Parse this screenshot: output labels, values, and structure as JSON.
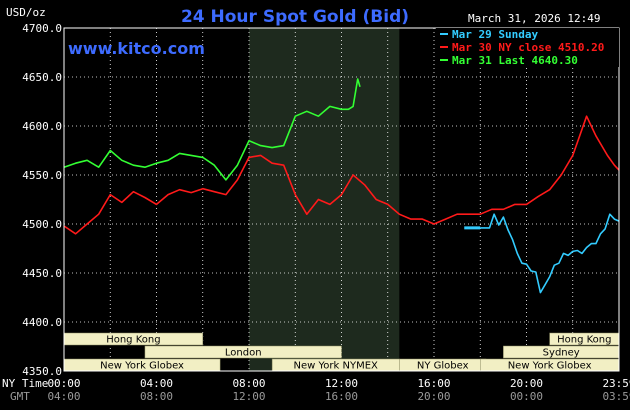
{
  "chart_data": {
    "type": "line",
    "title": "24 Hour Spot Gold (Bid)",
    "source": "www.kitco.com",
    "timestamp": "March 31, 2026 12:49",
    "ylabel": "USD/oz",
    "ylim": [
      4350,
      4700
    ],
    "y_ticks": [
      "4700.0",
      "4650.0",
      "4600.0",
      "4550.0",
      "4500.0",
      "4450.0",
      "4400.0",
      "4350.0"
    ],
    "x_hours": [
      0,
      24
    ],
    "ny_time_label": "NY Time",
    "gmt_label": "GMT",
    "ny_ticks": [
      "00:00",
      "04:00",
      "08:00",
      "12:00",
      "16:00",
      "20:00",
      "23:59"
    ],
    "gmt_ticks": [
      "04:00",
      "08:00",
      "12:00",
      "16:00",
      "20:00",
      "00:00",
      "03:59"
    ],
    "grid": true,
    "legend_position": "top-right",
    "colors": {
      "mar29": "#33ccff",
      "mar30": "#ff1a1a",
      "mar31": "#33ff33",
      "grid": "#ffffff",
      "shaded": "#1e2a1e",
      "sessions": "#f2efc4"
    },
    "series": [
      {
        "name": "Mar 29 Sunday",
        "color": "#33ccff",
        "x": [
          18.0,
          18.4,
          18.6,
          18.8,
          19.0,
          19.2,
          19.4,
          19.6,
          19.8,
          20.0,
          20.2,
          20.4,
          20.6,
          20.8,
          21.0,
          21.2,
          21.4,
          21.6,
          21.8,
          22.0,
          22.2,
          22.4,
          22.6,
          22.8,
          23.0,
          23.2,
          23.4,
          23.6,
          23.8,
          24.0
        ],
        "y": [
          4496,
          4496,
          4510,
          4499,
          4507,
          4494,
          4484,
          4470,
          4460,
          4459,
          4452,
          4451,
          4430,
          4438,
          4446,
          4458,
          4460,
          4470,
          4468,
          4472,
          4473,
          4470,
          4476,
          4480,
          4480,
          4490,
          4495,
          4510,
          4505,
          4503
        ]
      },
      {
        "name": "Mar 30 NY close 4510.20",
        "color": "#ff1a1a",
        "x": [
          0.0,
          0.5,
          1.0,
          1.5,
          2.0,
          2.5,
          3.0,
          3.5,
          4.0,
          4.5,
          5.0,
          5.5,
          6.0,
          6.5,
          7.0,
          7.5,
          8.0,
          8.5,
          9.0,
          9.5,
          10.0,
          10.5,
          11.0,
          11.5,
          12.0,
          12.5,
          13.0,
          13.5,
          14.0,
          14.5,
          15.0,
          15.5,
          16.0,
          16.5,
          17.0,
          17.5,
          18.0,
          18.5,
          19.0,
          19.5,
          20.0,
          20.5,
          21.0,
          21.5,
          22.0,
          22.3,
          22.6,
          23.0,
          23.5,
          23.8,
          24.0
        ],
        "y": [
          4498,
          4490,
          4500,
          4510,
          4530,
          4522,
          4533,
          4527,
          4520,
          4530,
          4535,
          4532,
          4536,
          4533,
          4530,
          4545,
          4568,
          4570,
          4562,
          4560,
          4530,
          4510,
          4525,
          4520,
          4530,
          4550,
          4540,
          4525,
          4520,
          4510,
          4505,
          4505,
          4500,
          4505,
          4510,
          4510,
          4510,
          4515,
          4515,
          4520,
          4520,
          4528,
          4535,
          4550,
          4570,
          4590,
          4610,
          4590,
          4570,
          4560,
          4555
        ]
      },
      {
        "name": "Mar 31 Last 4640.30",
        "color": "#33ff33",
        "x": [
          0.0,
          0.5,
          1.0,
          1.5,
          2.0,
          2.5,
          3.0,
          3.5,
          4.0,
          4.5,
          5.0,
          5.5,
          6.0,
          6.5,
          7.0,
          7.5,
          8.0,
          8.5,
          9.0,
          9.5,
          10.0,
          10.5,
          11.0,
          11.5,
          12.0,
          12.3,
          12.5,
          12.7,
          12.8
        ],
        "y": [
          4558,
          4562,
          4565,
          4558,
          4575,
          4565,
          4560,
          4558,
          4562,
          4565,
          4572,
          4570,
          4568,
          4560,
          4545,
          4560,
          4585,
          4580,
          4578,
          4580,
          4610,
          4615,
          4610,
          4620,
          4617,
          4617,
          4620,
          4648,
          4640
        ]
      }
    ],
    "sessions": [
      {
        "label": "Hong Kong",
        "start": 0.0,
        "end": 6.0,
        "row": 0
      },
      {
        "label": "London",
        "start": 3.5,
        "end": 12.0,
        "row": 1
      },
      {
        "label": "New York Globex",
        "start": 0.0,
        "end": 6.75,
        "row": 2
      },
      {
        "label": "New York NYMEX",
        "start": 9.0,
        "end": 14.5,
        "row": 2
      },
      {
        "label": "NY Globex",
        "start": 14.5,
        "end": 18.25,
        "row": 2
      },
      {
        "label": "Hong Kong",
        "start": 21.0,
        "end": 24.0,
        "row": 0
      },
      {
        "label": "Sydney",
        "start": 19.0,
        "end": 24.0,
        "row": 1
      },
      {
        "label": "New York Globex",
        "start": 18.0,
        "end": 24.0,
        "row": 2
      }
    ],
    "shaded_hours": [
      8.0,
      14.5
    ]
  }
}
